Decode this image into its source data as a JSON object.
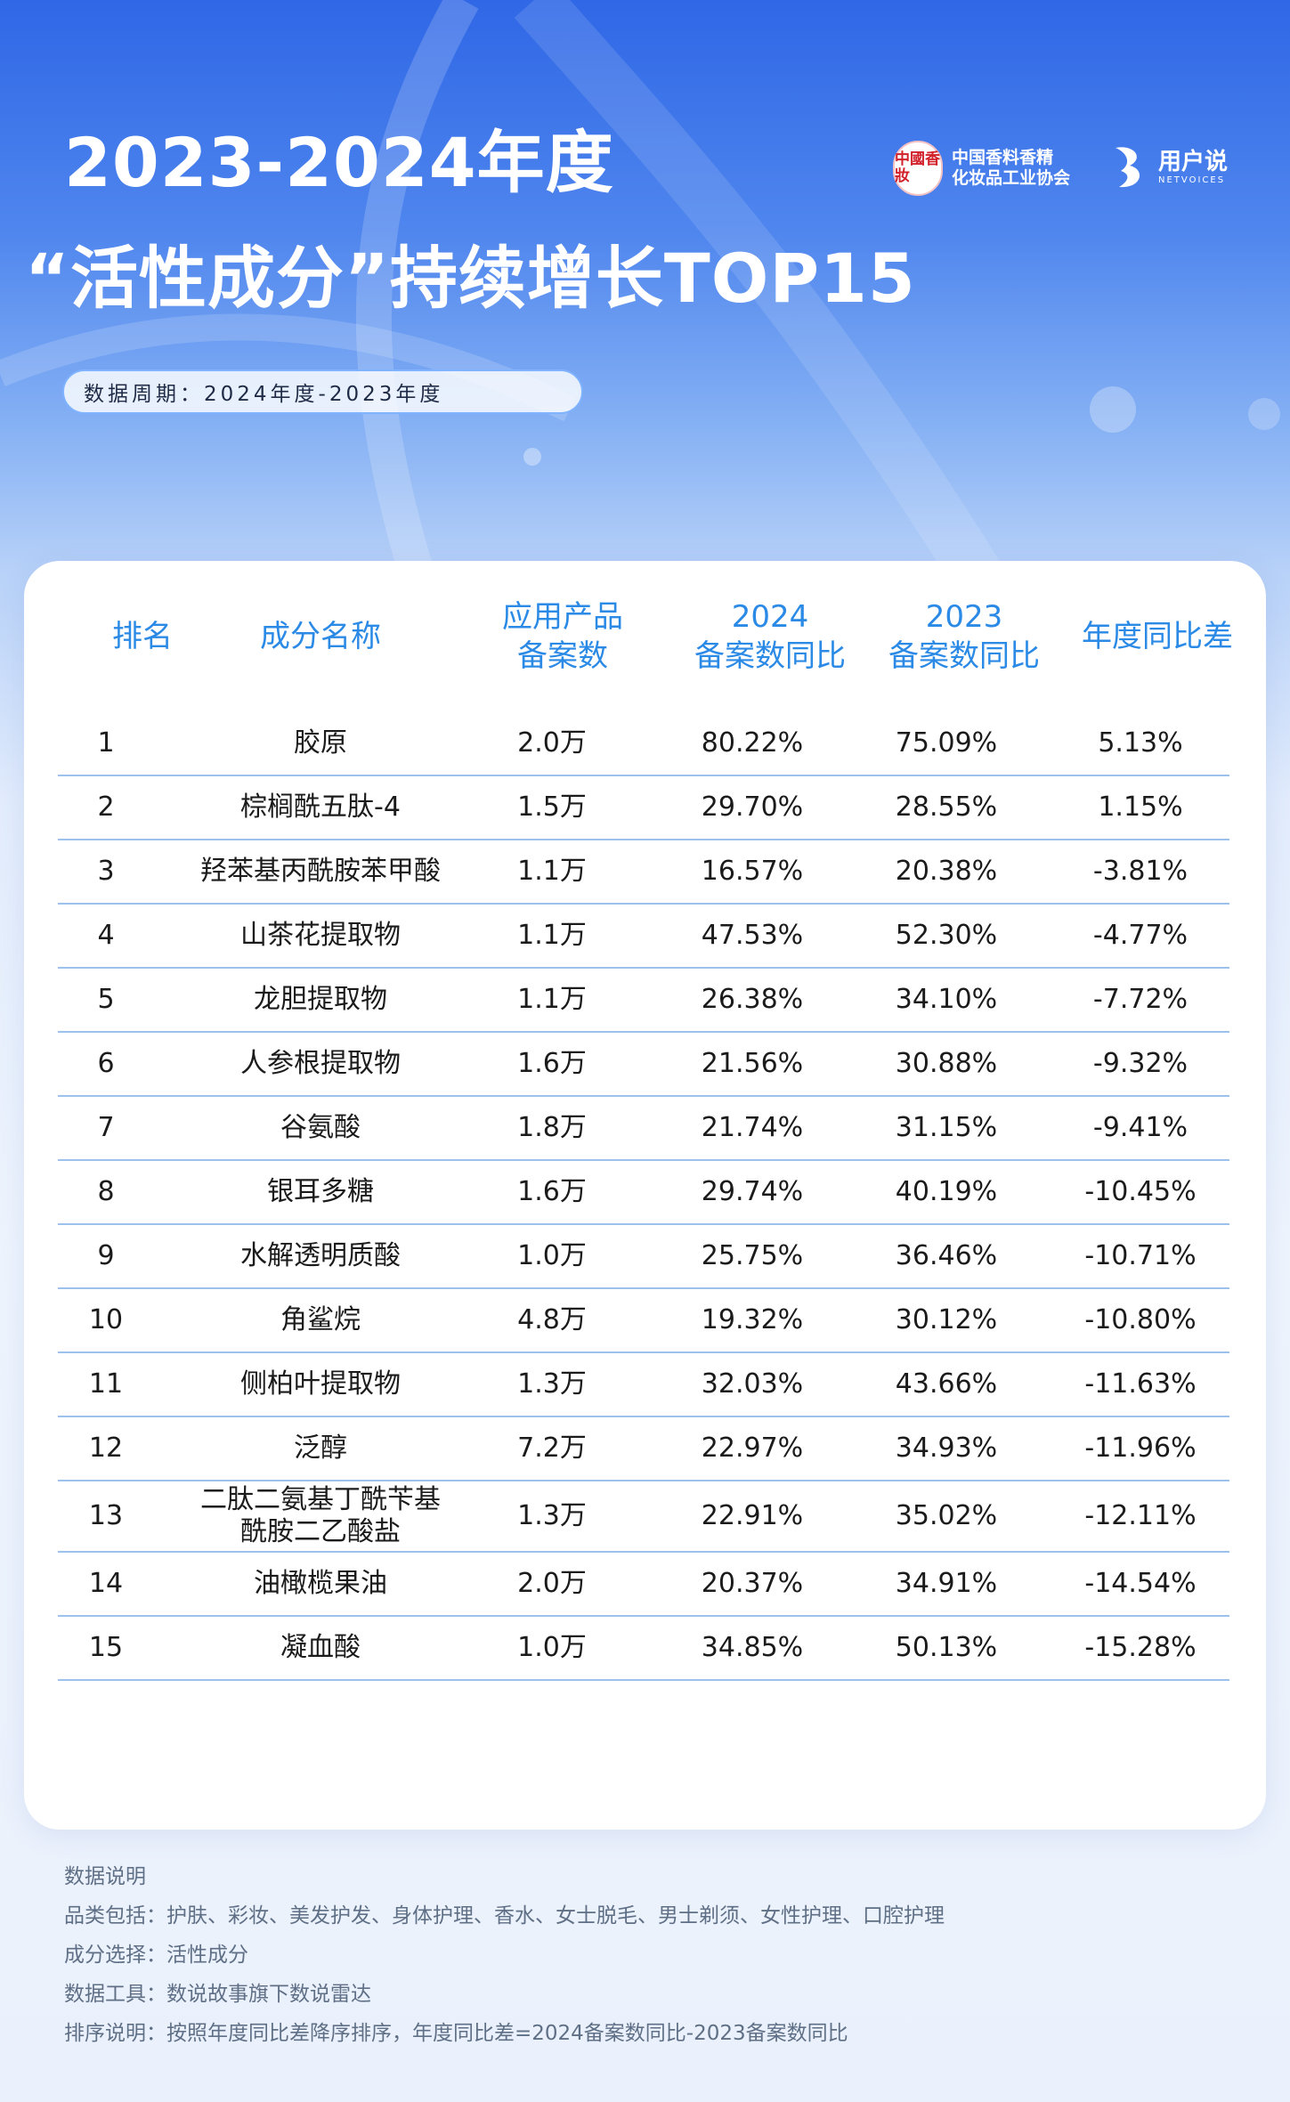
{
  "header": {
    "title_line1": "2023-2024年度",
    "title_line2": "“活性成分”持续增长TOP15",
    "period": "数据周期：2024年度-2023年度"
  },
  "logos": {
    "association_seal": "中國香妝",
    "association_name_line1": "中国香料香精",
    "association_name_line2": "化妆品工业协会",
    "netvoices_cn": "用户说",
    "netvoices_en": "NETVOICES"
  },
  "colors": {
    "header_blue": "#2f67e6",
    "table_header_text": "#2b8ae6",
    "row_divider": "#9cc1ec",
    "seal_red": "#d1202a"
  },
  "table": {
    "headers": {
      "rank": "排名",
      "name": "成分名称",
      "count_line1": "应用产品",
      "count_line2": "备案数",
      "y2024_line1": "2024",
      "y2024_line2": "备案数同比",
      "y2023_line1": "2023",
      "y2023_line2": "备案数同比",
      "diff": "年度同比差"
    },
    "rows": [
      {
        "rank": "1",
        "name": "胶原",
        "count": "2.0万",
        "y2024": "80.22%",
        "y2023": "75.09%",
        "diff": "5.13%"
      },
      {
        "rank": "2",
        "name": "棕榈酰五肽-4",
        "count": "1.5万",
        "y2024": "29.70%",
        "y2023": "28.55%",
        "diff": "1.15%"
      },
      {
        "rank": "3",
        "name": "羟苯基丙酰胺苯甲酸",
        "count": "1.1万",
        "y2024": "16.57%",
        "y2023": "20.38%",
        "diff": "-3.81%"
      },
      {
        "rank": "4",
        "name": "山茶花提取物",
        "count": "1.1万",
        "y2024": "47.53%",
        "y2023": "52.30%",
        "diff": "-4.77%"
      },
      {
        "rank": "5",
        "name": "龙胆提取物",
        "count": "1.1万",
        "y2024": "26.38%",
        "y2023": "34.10%",
        "diff": "-7.72%"
      },
      {
        "rank": "6",
        "name": "人参根提取物",
        "count": "1.6万",
        "y2024": "21.56%",
        "y2023": "30.88%",
        "diff": "-9.32%"
      },
      {
        "rank": "7",
        "name": "谷氨酸",
        "count": "1.8万",
        "y2024": "21.74%",
        "y2023": "31.15%",
        "diff": "-9.41%"
      },
      {
        "rank": "8",
        "name": "银耳多糖",
        "count": "1.6万",
        "y2024": "29.74%",
        "y2023": "40.19%",
        "diff": "-10.45%"
      },
      {
        "rank": "9",
        "name": "水解透明质酸",
        "count": "1.0万",
        "y2024": "25.75%",
        "y2023": "36.46%",
        "diff": "-10.71%"
      },
      {
        "rank": "10",
        "name": "角鲨烷",
        "count": "4.8万",
        "y2024": "19.32%",
        "y2023": "30.12%",
        "diff": "-10.80%"
      },
      {
        "rank": "11",
        "name": "侧柏叶提取物",
        "count": "1.3万",
        "y2024": "32.03%",
        "y2023": "43.66%",
        "diff": "-11.63%"
      },
      {
        "rank": "12",
        "name": "泛醇",
        "count": "7.2万",
        "y2024": "22.97%",
        "y2023": "34.93%",
        "diff": "-11.96%"
      },
      {
        "rank": "13",
        "name_line1": "二肽二氨基丁酰苄基",
        "name_line2": "酰胺二乙酸盐",
        "count": "1.3万",
        "y2024": "22.91%",
        "y2023": "35.02%",
        "diff": "-12.11%"
      },
      {
        "rank": "14",
        "name": "油橄榄果油",
        "count": "2.0万",
        "y2024": "20.37%",
        "y2023": "34.91%",
        "diff": "-14.54%"
      },
      {
        "rank": "15",
        "name": "凝血酸",
        "count": "1.0万",
        "y2024": "34.85%",
        "y2023": "50.13%",
        "diff": "-15.28%"
      }
    ]
  },
  "notes": {
    "title": "数据说明",
    "categories": "品类包括：护肤、彩妆、美发护发、身体护理、香水、女士脱毛、男士剃须、女性护理、口腔护理",
    "selection": "成分选择：活性成分",
    "tool": "数据工具：数说故事旗下数说雷达",
    "sorting": "排序说明：按照年度同比差降序排序，年度同比差=2024备案数同比-2023备案数同比"
  },
  "chart_data": {
    "type": "table",
    "columns": [
      "排名",
      "成分名称",
      "应用产品备案数",
      "2024备案数同比",
      "2023备案数同比",
      "年度同比差"
    ],
    "rows": [
      [
        "1",
        "胶原",
        "2.0万",
        "80.22%",
        "75.09%",
        "5.13%"
      ],
      [
        "2",
        "棕榈酰五肽-4",
        "1.5万",
        "29.70%",
        "28.55%",
        "1.15%"
      ],
      [
        "3",
        "羟苯基丙酰胺苯甲酸",
        "1.1万",
        "16.57%",
        "20.38%",
        "-3.81%"
      ],
      [
        "4",
        "山茶花提取物",
        "1.1万",
        "47.53%",
        "52.30%",
        "-4.77%"
      ],
      [
        "5",
        "龙胆提取物",
        "1.1万",
        "26.38%",
        "34.10%",
        "-7.72%"
      ],
      [
        "6",
        "人参根提取物",
        "1.6万",
        "21.56%",
        "30.88%",
        "-9.32%"
      ],
      [
        "7",
        "谷氨酸",
        "1.8万",
        "21.74%",
        "31.15%",
        "-9.41%"
      ],
      [
        "8",
        "银耳多糖",
        "1.6万",
        "29.74%",
        "40.19%",
        "-10.45%"
      ],
      [
        "9",
        "水解透明质酸",
        "1.0万",
        "25.75%",
        "36.46%",
        "-10.71%"
      ],
      [
        "10",
        "角鲨烷",
        "4.8万",
        "19.32%",
        "30.12%",
        "-10.80%"
      ],
      [
        "11",
        "侧柏叶提取物",
        "1.3万",
        "32.03%",
        "43.66%",
        "-11.63%"
      ],
      [
        "12",
        "泛醇",
        "7.2万",
        "22.97%",
        "34.93%",
        "-11.96%"
      ],
      [
        "13",
        "二肽二氨基丁酰苄基酰胺二乙酸盐",
        "1.3万",
        "22.91%",
        "35.02%",
        "-12.11%"
      ],
      [
        "14",
        "油橄榄果油",
        "2.0万",
        "20.37%",
        "34.91%",
        "-14.54%"
      ],
      [
        "15",
        "凝血酸",
        "1.0万",
        "34.85%",
        "50.13%",
        "-15.28%"
      ]
    ]
  }
}
